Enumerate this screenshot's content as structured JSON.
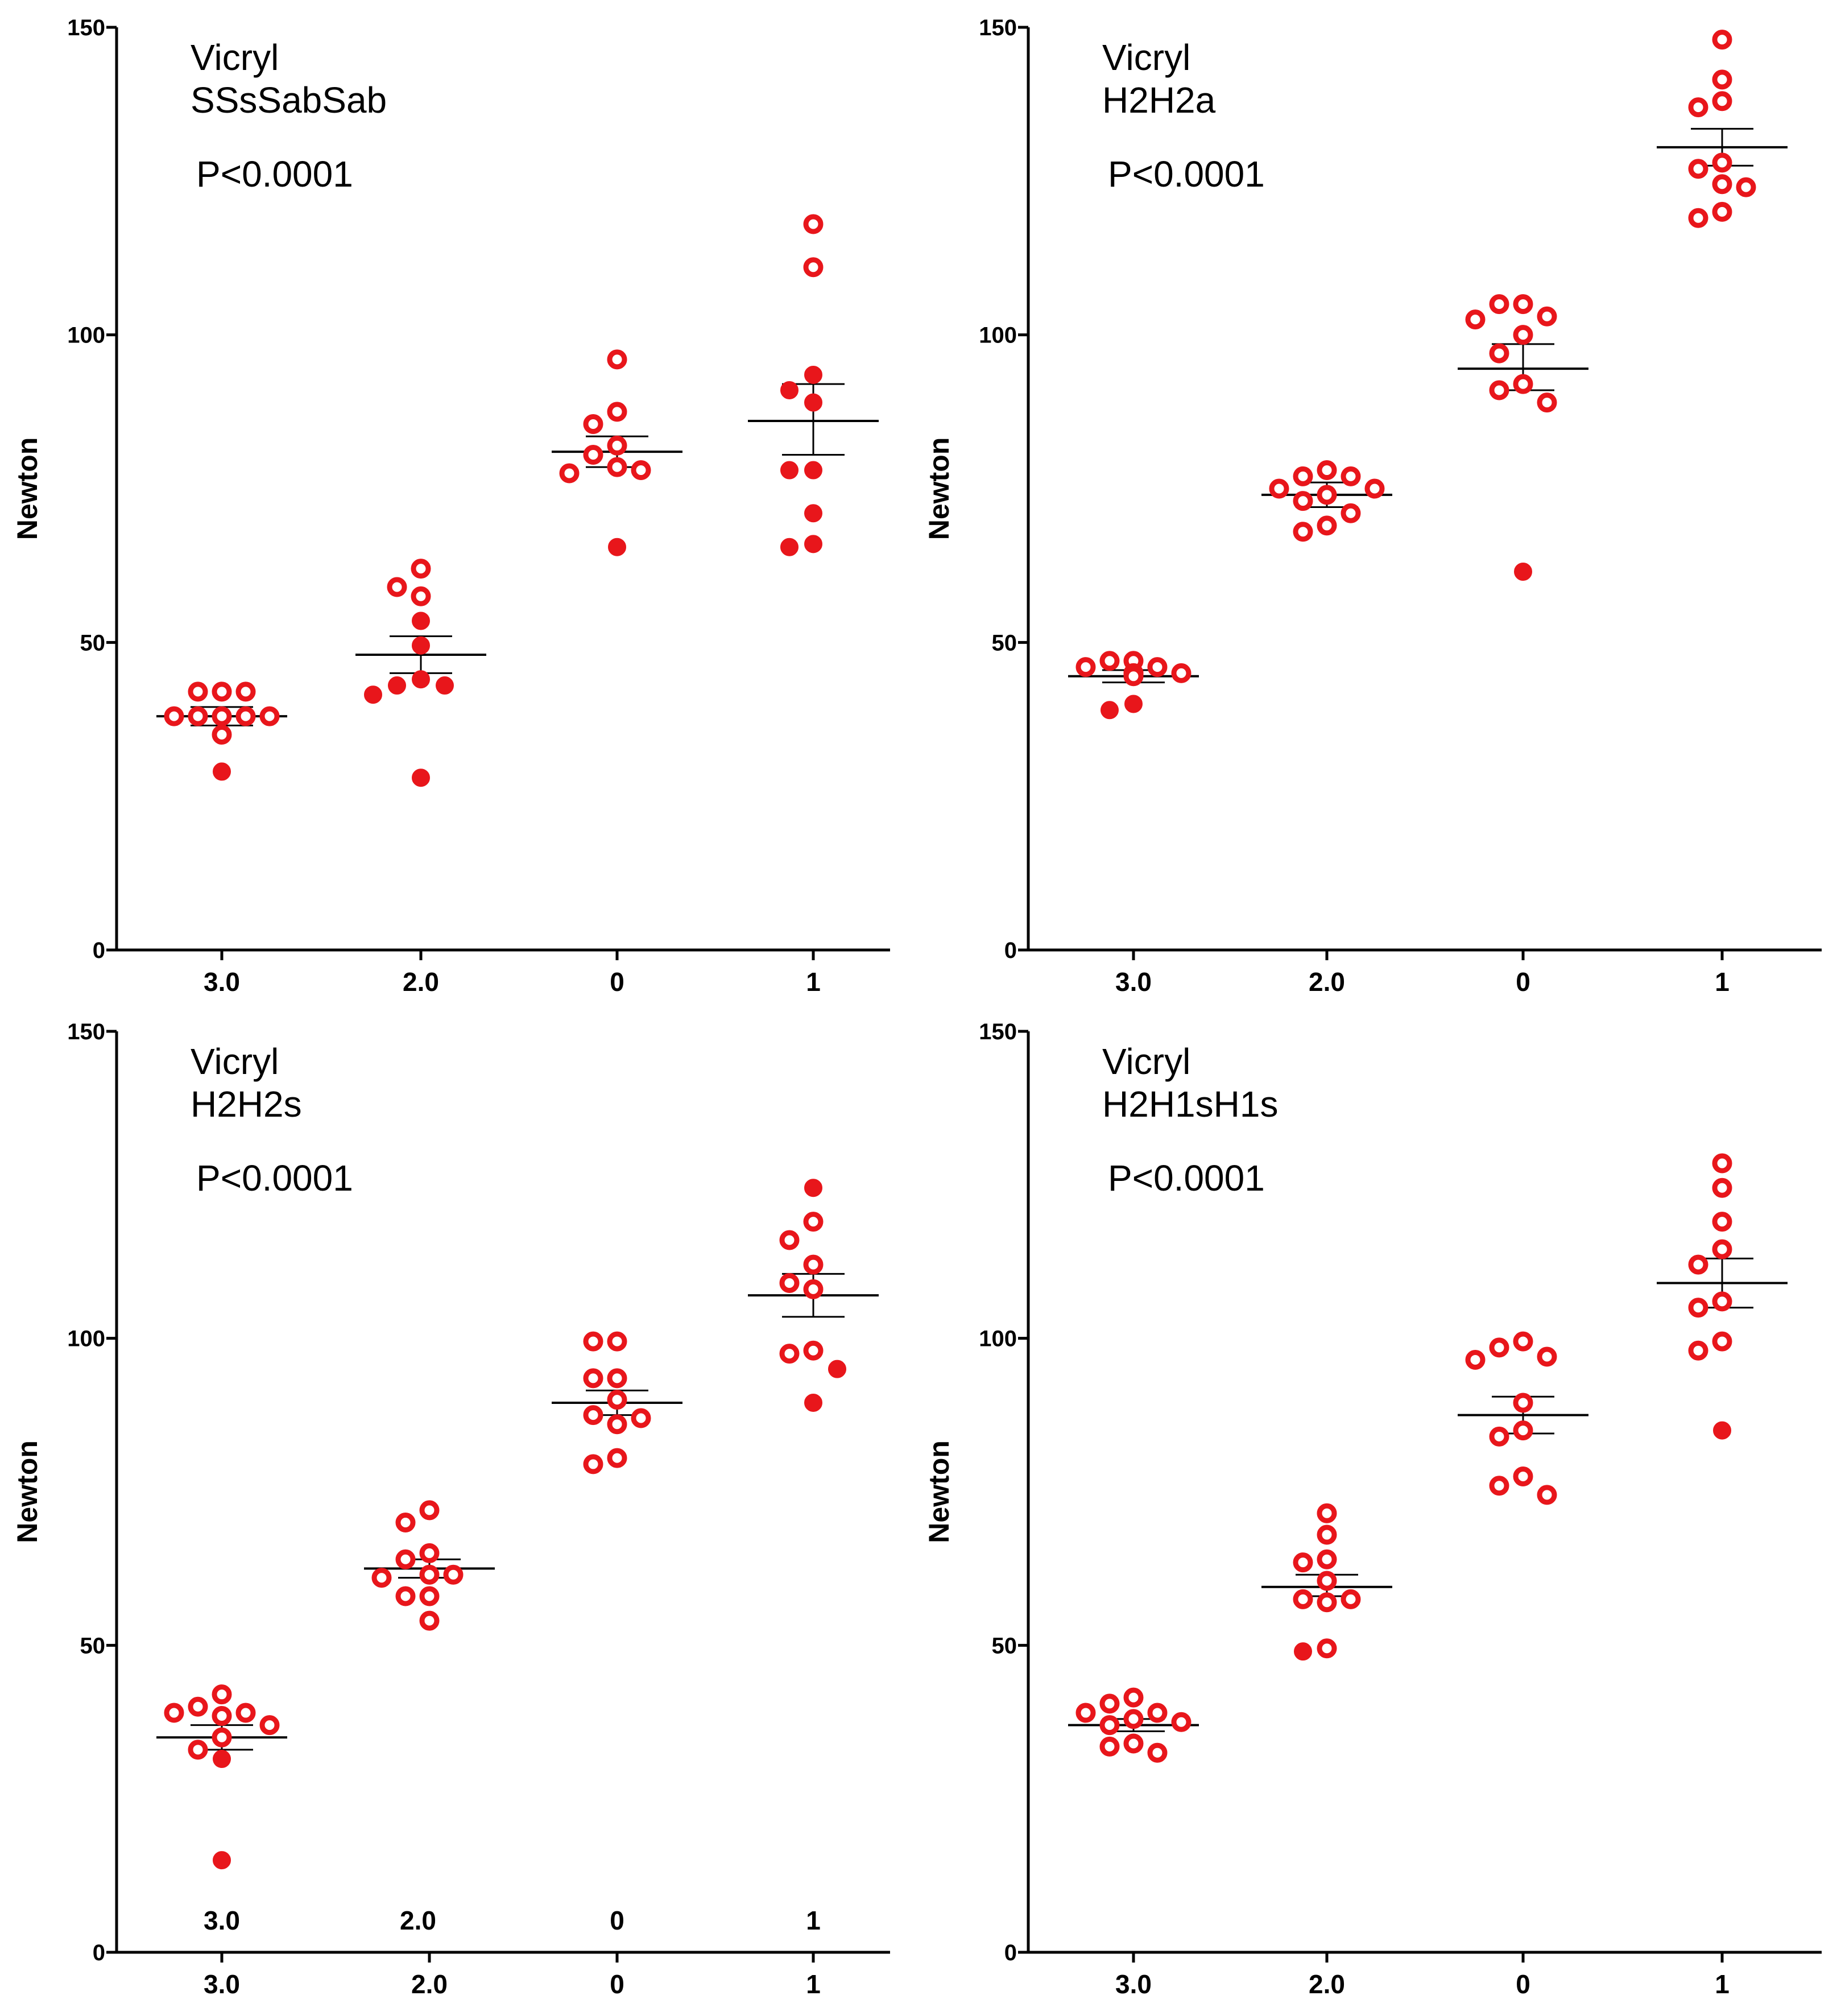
{
  "colors": {
    "marker": "#E8161B",
    "axis": "#000000",
    "mean_line": "#000000"
  },
  "chart_data": [
    {
      "type": "scatter",
      "title": "Vicryl",
      "subtitle": "SSsSabSab",
      "annotation": "P<0.0001",
      "xlabel": "",
      "ylabel": "Newton",
      "ylim": [
        0,
        150
      ],
      "yticks": [
        "0",
        "50",
        "100",
        "150"
      ],
      "categories": [
        "3.0",
        "2.0",
        "0",
        "1"
      ],
      "series": [
        {
          "name": "3.0",
          "mean": 38,
          "sem_low": 36.5,
          "sem_high": 39.5,
          "points": [
            42,
            42,
            42,
            38,
            38,
            38,
            38,
            38,
            35,
            29
          ],
          "filled": [
            false,
            false,
            false,
            false,
            false,
            false,
            false,
            false,
            false,
            true
          ]
        },
        {
          "name": "2.0",
          "mean": 48,
          "sem_low": 45,
          "sem_high": 51,
          "points": [
            62,
            59,
            57.5,
            53.5,
            49.5,
            44,
            43,
            43,
            41.5,
            28
          ],
          "filled": [
            false,
            false,
            false,
            true,
            true,
            true,
            true,
            true,
            true,
            true
          ]
        },
        {
          "name": "0",
          "mean": 81,
          "sem_low": 78.5,
          "sem_high": 83.5,
          "points": [
            96,
            87.5,
            85.5,
            82,
            80.5,
            78.5,
            78,
            77.5,
            65.5
          ],
          "filled": [
            false,
            false,
            false,
            false,
            false,
            false,
            false,
            false,
            true
          ]
        },
        {
          "name": "1",
          "mean": 86,
          "sem_low": 80.5,
          "sem_high": 92,
          "points": [
            118,
            111,
            93.5,
            91,
            89,
            78,
            78,
            71,
            66,
            65.5
          ],
          "filled": [
            false,
            false,
            true,
            true,
            true,
            true,
            true,
            true,
            true,
            true
          ]
        }
      ]
    },
    {
      "type": "scatter",
      "title": "Vicryl",
      "subtitle": "H2H2a",
      "annotation": "P<0.0001",
      "xlabel": "",
      "ylabel": "Newton",
      "ylim": [
        0,
        150
      ],
      "yticks": [
        "0",
        "50",
        "100",
        "150"
      ],
      "categories": [
        "3.0",
        "2.0",
        "0",
        "1"
      ],
      "series": [
        {
          "name": "3.0",
          "mean": 44.5,
          "sem_low": 43.5,
          "sem_high": 45.5,
          "points": [
            47,
            47,
            46,
            46,
            45,
            45,
            45,
            44.5,
            40,
            39
          ],
          "filled": [
            false,
            false,
            false,
            false,
            false,
            false,
            false,
            false,
            true,
            true
          ]
        },
        {
          "name": "2.0",
          "mean": 74,
          "sem_low": 72,
          "sem_high": 76,
          "points": [
            78,
            77,
            77,
            75,
            75,
            74,
            73,
            71,
            69,
            68
          ],
          "filled": [
            false,
            false,
            false,
            false,
            false,
            false,
            false,
            false,
            false,
            false
          ]
        },
        {
          "name": "0",
          "mean": 94.5,
          "sem_low": 91,
          "sem_high": 98.5,
          "points": [
            105,
            105,
            103,
            102.5,
            100,
            97,
            92,
            91,
            89,
            61.5
          ],
          "filled": [
            false,
            false,
            false,
            false,
            false,
            false,
            false,
            false,
            false,
            true
          ]
        },
        {
          "name": "1",
          "mean": 130.5,
          "sem_low": 127.5,
          "sem_high": 133.5,
          "points": [
            148,
            141.5,
            138,
            137,
            128,
            127,
            124.5,
            124,
            120,
            119
          ],
          "filled": [
            false,
            false,
            false,
            false,
            false,
            false,
            false,
            false,
            false,
            false
          ]
        }
      ]
    },
    {
      "type": "scatter",
      "title": "Vicryl",
      "subtitle": "H2H2s",
      "annotation": "P<0.0001",
      "xlabel": "",
      "ylabel": "Newton",
      "ylim": [
        0,
        150
      ],
      "yticks": [
        "0",
        "50",
        "100",
        "150"
      ],
      "categories": [
        "3.0",
        "2.0",
        "0",
        "1"
      ],
      "inner_labels": [
        "3.0",
        "2.0",
        "0",
        "1"
      ],
      "series": [
        {
          "name": "3.0",
          "mean": 35,
          "sem_low": 33,
          "sem_high": 37,
          "points": [
            42,
            40,
            39,
            39,
            38.5,
            37,
            35,
            33,
            31.5,
            15
          ],
          "filled": [
            false,
            false,
            false,
            false,
            false,
            false,
            false,
            false,
            true,
            true
          ]
        },
        {
          "name": "2.0",
          "mean": 62.5,
          "sem_low": 61,
          "sem_high": 64,
          "points": [
            72,
            70,
            65,
            64,
            61.5,
            61.5,
            61,
            58,
            58,
            54
          ],
          "filled": [
            false,
            false,
            false,
            false,
            false,
            false,
            false,
            false,
            false,
            false
          ]
        },
        {
          "name": "0",
          "mean": 89.5,
          "sem_low": 87.5,
          "sem_high": 91.5,
          "points": [
            99.5,
            99.5,
            93.5,
            93.5,
            90,
            87.5,
            87,
            86,
            80.5,
            79.5
          ],
          "filled": [
            false,
            false,
            false,
            false,
            false,
            false,
            false,
            false,
            false,
            false
          ]
        },
        {
          "name": "1",
          "mean": 107,
          "sem_low": 103.5,
          "sem_high": 110.5,
          "points": [
            124.5,
            119,
            116,
            112,
            109,
            108,
            98,
            97.5,
            95,
            89.5
          ],
          "filled": [
            true,
            false,
            false,
            false,
            false,
            false,
            false,
            false,
            true,
            true
          ]
        }
      ]
    },
    {
      "type": "scatter",
      "title": "Vicryl",
      "subtitle": "H2H1sH1s",
      "annotation": "P<0.0001",
      "xlabel": "",
      "ylabel": "Newton",
      "ylim": [
        0,
        150
      ],
      "yticks": [
        "0",
        "50",
        "100",
        "150"
      ],
      "categories": [
        "3.0",
        "2.0",
        "0",
        "1"
      ],
      "series": [
        {
          "name": "3.0",
          "mean": 37,
          "sem_low": 36,
          "sem_high": 38,
          "points": [
            41.5,
            40.5,
            39,
            39,
            38,
            37.5,
            37,
            34,
            33.5,
            32.5
          ],
          "filled": [
            false,
            false,
            false,
            false,
            false,
            false,
            false,
            false,
            false,
            false
          ]
        },
        {
          "name": "2.0",
          "mean": 59.5,
          "sem_low": 58,
          "sem_high": 61.5,
          "points": [
            71.5,
            68,
            64,
            63.5,
            60.5,
            57.5,
            57.5,
            57,
            49.5,
            49
          ],
          "filled": [
            false,
            false,
            false,
            false,
            false,
            false,
            false,
            false,
            false,
            true
          ]
        },
        {
          "name": "0",
          "mean": 87.5,
          "sem_low": 84.5,
          "sem_high": 90.5,
          "points": [
            99.5,
            98.5,
            97,
            96.5,
            89.5,
            85,
            84,
            77.5,
            76,
            74.5
          ],
          "filled": [
            false,
            false,
            false,
            false,
            false,
            false,
            false,
            false,
            false,
            false
          ]
        },
        {
          "name": "1",
          "mean": 109,
          "sem_low": 105,
          "sem_high": 113,
          "points": [
            128.5,
            124.5,
            119,
            114.5,
            112,
            106,
            105,
            99.5,
            98,
            85
          ],
          "filled": [
            false,
            false,
            false,
            false,
            false,
            false,
            false,
            false,
            false,
            true
          ]
        }
      ]
    }
  ]
}
